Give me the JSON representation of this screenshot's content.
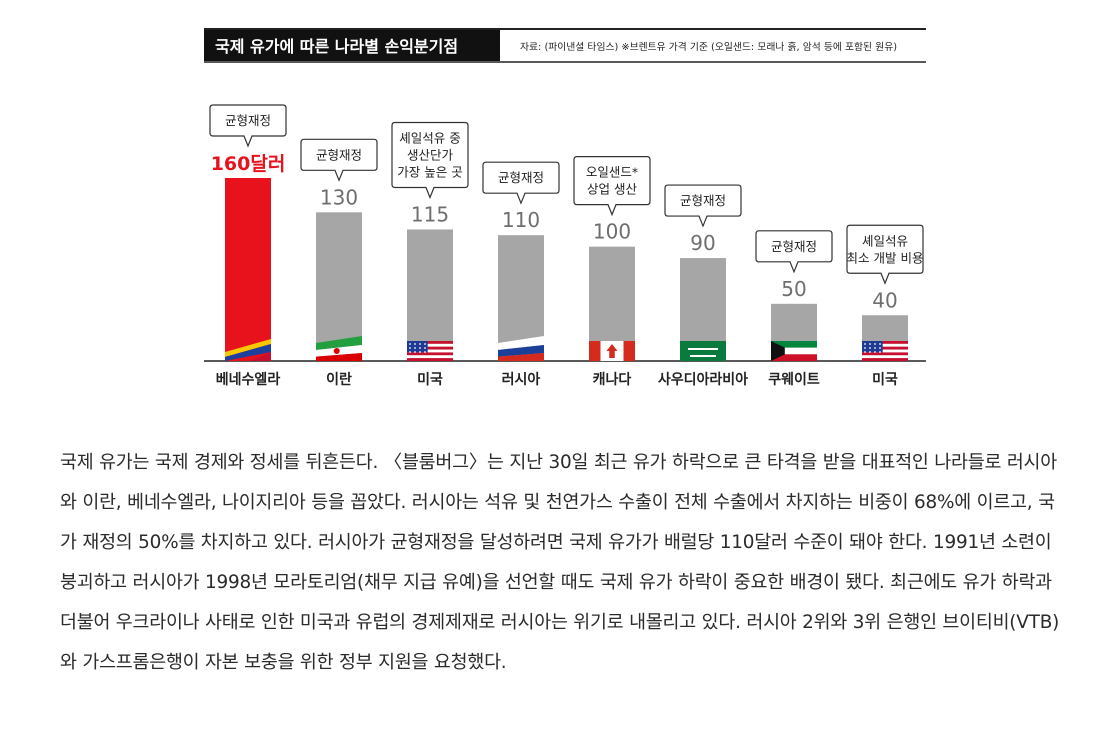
{
  "chart_data": {
    "type": "bar",
    "title": "국제 유가에 따른 나라별 손익분기점",
    "source_note": "자료: (파이낸셜 타임스)  ※브렌트유 가격 기준 (오일샌드: 모래나 흙, 암석 등에 포함된 원유)",
    "categories": [
      "베네수엘라",
      "이란",
      "미국",
      "러시아",
      "캐나다",
      "사우디아라비아",
      "쿠웨이트",
      "미국"
    ],
    "values": [
      160,
      130,
      115,
      110,
      100,
      90,
      50,
      40
    ],
    "value_labels": [
      "160달러",
      "130",
      "115",
      "110",
      "100",
      "90",
      "50",
      "40"
    ],
    "callouts": [
      [
        "균형재정"
      ],
      [
        "균형재정"
      ],
      [
        "셰일석유 중",
        "생산단가",
        "가장 높은 곳"
      ],
      [
        "균형재정"
      ],
      [
        "오일샌드*",
        "상업 생산"
      ],
      [
        "균형재정"
      ],
      [
        "균형재정"
      ],
      [
        "셰일석유",
        "최소 개발 비용"
      ]
    ],
    "flags": [
      "venezuela",
      "iran",
      "usa",
      "russia",
      "canada",
      "saudi",
      "kuwait",
      "usa"
    ],
    "colors": {
      "highlight": "#e8121c",
      "bar": "#a6a6a6",
      "title_bg": "#111111",
      "title_fg": "#ffffff"
    },
    "ylim": [
      0,
      170
    ],
    "xlabel": "",
    "ylabel": ""
  },
  "article": {
    "text": "국제 유가는 국제 경제와 정세를 뒤흔든다. 〈블룸버그〉는 지난 30일 최근 유가 하락으로 큰 타격을 받을 대표적인 나라들로 러시아와 이란, 베네수엘라, 나이지리아 등을 꼽았다. 러시아는 석유 및 천연가스 수출이 전체 수출에서 차지하는 비중이 68%에 이르고, 국가 재정의 50%를 차지하고 있다. 러시아가 균형재정을 달성하려면 국제 유가가 배럴당 110달러 수준이 돼야 한다. 1991년 소련이 붕괴하고 러시아가 1998년 모라토리엄(채무 지급 유예)을 선언할 때도 국제 유가 하락이 중요한 배경이 됐다. 최근에도 유가 하락과 더불어 우크라이나 사태로 인한 미국과 유럽의 경제제재로 러시아는 위기로 내몰리고 있다. 러시아 2위와 3위 은행인 브이티비(VTB)와 가스프롬은행이 자본 보충을 위한 정부 지원을 요청했다."
  }
}
